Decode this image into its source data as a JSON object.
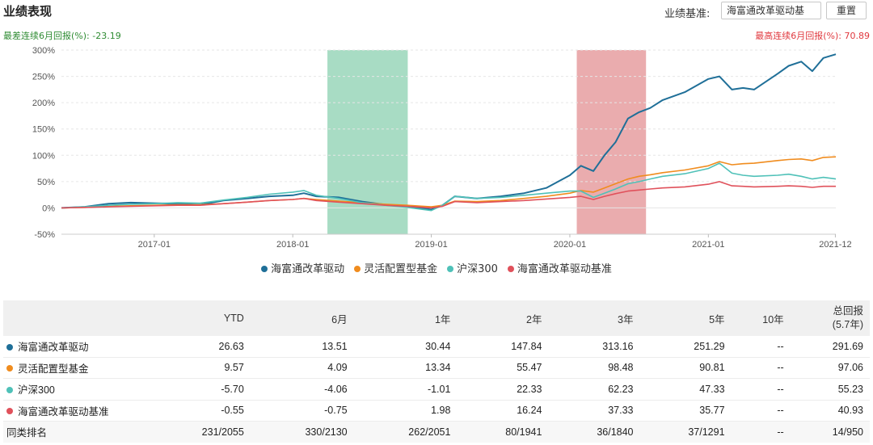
{
  "header": {
    "title": "业绩表现",
    "benchmark_label": "业绩基准:",
    "benchmark_button": "海富通改革驱动基",
    "reset_button": "重置"
  },
  "worst_label": "最差连续6月回报(%): -23.19",
  "best_label": "最高连续6月回报(%): 70.89",
  "chart_data": {
    "type": "line",
    "x_ticks": [
      "2017-01",
      "2018-01",
      "2019-01",
      "2020-01",
      "2021-01",
      "2021-12"
    ],
    "y_ticks": [
      "300%",
      "250%",
      "200%",
      "150%",
      "100%",
      "50%",
      "0%",
      "-50%"
    ],
    "ylim": [
      -50,
      300
    ],
    "x_unit": "year",
    "xlim": [
      2016.33,
      2021.92
    ],
    "grid": true,
    "legend_position": "bottom",
    "shaded_regions": [
      {
        "x0": 2018.25,
        "x1": 2018.83,
        "color": "#9ed8be",
        "meaning": "worst 6-month period"
      },
      {
        "x0": 2020.05,
        "x1": 2020.55,
        "color": "#e8a3a5",
        "meaning": "best 6-month period"
      }
    ],
    "x": [
      2016.33,
      2016.5,
      2016.67,
      2016.83,
      2017.0,
      2017.17,
      2017.33,
      2017.5,
      2017.67,
      2017.83,
      2018.0,
      2018.08,
      2018.17,
      2018.33,
      2018.5,
      2018.67,
      2018.83,
      2019.0,
      2019.08,
      2019.17,
      2019.33,
      2019.5,
      2019.67,
      2019.83,
      2020.0,
      2020.08,
      2020.17,
      2020.25,
      2020.33,
      2020.42,
      2020.5,
      2020.58,
      2020.67,
      2020.83,
      2021.0,
      2021.08,
      2021.17,
      2021.25,
      2021.33,
      2021.5,
      2021.58,
      2021.67,
      2021.75,
      2021.83,
      2021.92
    ],
    "series": [
      {
        "name": "海富通改革驱动",
        "color": "#1f6f98",
        "values": [
          0,
          2,
          8,
          10,
          9,
          8,
          6,
          14,
          18,
          22,
          24,
          28,
          22,
          20,
          12,
          6,
          2,
          -3,
          5,
          22,
          18,
          22,
          28,
          38,
          62,
          80,
          70,
          100,
          125,
          170,
          182,
          190,
          205,
          220,
          245,
          250,
          225,
          228,
          225,
          255,
          270,
          278,
          260,
          285,
          292
        ]
      },
      {
        "name": "灵活配置型基金",
        "color": "#f08c1e",
        "values": [
          0,
          1,
          3,
          4,
          5,
          6,
          6,
          8,
          11,
          14,
          16,
          18,
          16,
          13,
          10,
          7,
          5,
          2,
          5,
          13,
          12,
          14,
          18,
          22,
          28,
          33,
          30,
          38,
          46,
          55,
          60,
          63,
          67,
          72,
          80,
          88,
          82,
          84,
          85,
          90,
          92,
          93,
          90,
          96,
          97
        ]
      },
      {
        "name": "沪深300",
        "color": "#4fc1b8",
        "values": [
          0,
          2,
          5,
          7,
          8,
          10,
          9,
          15,
          20,
          26,
          30,
          33,
          24,
          18,
          10,
          5,
          1,
          -5,
          5,
          22,
          18,
          20,
          24,
          28,
          32,
          32,
          20,
          28,
          36,
          46,
          50,
          55,
          60,
          65,
          75,
          85,
          66,
          62,
          60,
          62,
          64,
          60,
          55,
          58,
          55
        ]
      },
      {
        "name": "海富通改革驱动基准",
        "color": "#e0515b",
        "values": [
          0,
          1,
          2,
          3,
          4,
          5,
          5,
          8,
          11,
          14,
          16,
          18,
          14,
          11,
          8,
          5,
          3,
          0,
          3,
          12,
          10,
          12,
          14,
          17,
          20,
          22,
          16,
          22,
          27,
          32,
          34,
          36,
          38,
          40,
          45,
          50,
          42,
          41,
          40,
          41,
          42,
          41,
          39,
          41,
          41
        ]
      }
    ]
  },
  "table": {
    "columns": [
      "",
      "YTD",
      "6月",
      "1年",
      "2年",
      "3年",
      "5年",
      "10年"
    ],
    "total_col_line1": "总回报",
    "total_col_line2": "(5.7年)",
    "rows": [
      {
        "name": "海富通改革驱动",
        "color": "#1f6f98",
        "cells": [
          "26.63",
          "13.51",
          "30.44",
          "147.84",
          "313.16",
          "251.29",
          "--",
          "291.69"
        ]
      },
      {
        "name": "灵活配置型基金",
        "color": "#f08c1e",
        "cells": [
          "9.57",
          "4.09",
          "13.34",
          "55.47",
          "98.48",
          "90.81",
          "--",
          "97.06"
        ]
      },
      {
        "name": "沪深300",
        "color": "#4fc1b8",
        "cells": [
          "-5.70",
          "-4.06",
          "-1.01",
          "22.33",
          "62.23",
          "47.33",
          "--",
          "55.23"
        ]
      },
      {
        "name": "海富通改革驱动基准",
        "color": "#e0515b",
        "cells": [
          "-0.55",
          "-0.75",
          "1.98",
          "16.24",
          "37.33",
          "35.77",
          "--",
          "40.93"
        ]
      }
    ],
    "rank_row": {
      "name": "同类排名",
      "cells": [
        "231/2055",
        "330/2130",
        "262/2051",
        "80/1941",
        "36/1840",
        "37/1291",
        "--",
        "14/950"
      ]
    }
  }
}
